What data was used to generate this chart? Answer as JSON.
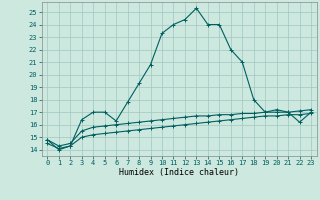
{
  "title": "",
  "xlabel": "Humidex (Indice chaleur)",
  "xlim": [
    -0.5,
    23.5
  ],
  "ylim": [
    13.5,
    25.8
  ],
  "xticks": [
    0,
    1,
    2,
    3,
    4,
    5,
    6,
    7,
    8,
    9,
    10,
    11,
    12,
    13,
    14,
    15,
    16,
    17,
    18,
    19,
    20,
    21,
    22,
    23
  ],
  "yticks": [
    14,
    15,
    16,
    17,
    18,
    19,
    20,
    21,
    22,
    23,
    24,
    25
  ],
  "bg_color": "#cce8df",
  "line_color": "#005f5f",
  "grid_color": "#a0c8c0",
  "line1_y": [
    14.8,
    14.0,
    14.3,
    16.4,
    17.0,
    17.0,
    16.3,
    17.8,
    19.3,
    20.8,
    23.3,
    24.0,
    24.4,
    25.3,
    24.0,
    24.0,
    22.0,
    21.0,
    18.0,
    17.0,
    17.2,
    17.0,
    16.2,
    17.0
  ],
  "line2_y": [
    14.8,
    14.3,
    14.5,
    15.5,
    15.8,
    15.9,
    16.0,
    16.1,
    16.2,
    16.3,
    16.4,
    16.5,
    16.6,
    16.7,
    16.7,
    16.8,
    16.8,
    16.9,
    16.9,
    17.0,
    17.0,
    17.0,
    17.1,
    17.2
  ],
  "line3_y": [
    14.5,
    14.1,
    14.3,
    15.0,
    15.2,
    15.3,
    15.4,
    15.5,
    15.6,
    15.7,
    15.8,
    15.9,
    16.0,
    16.1,
    16.2,
    16.3,
    16.4,
    16.5,
    16.6,
    16.7,
    16.7,
    16.8,
    16.8,
    16.9
  ],
  "markersize": 3,
  "linewidth": 0.8,
  "tick_fontsize": 5,
  "xlabel_fontsize": 6
}
